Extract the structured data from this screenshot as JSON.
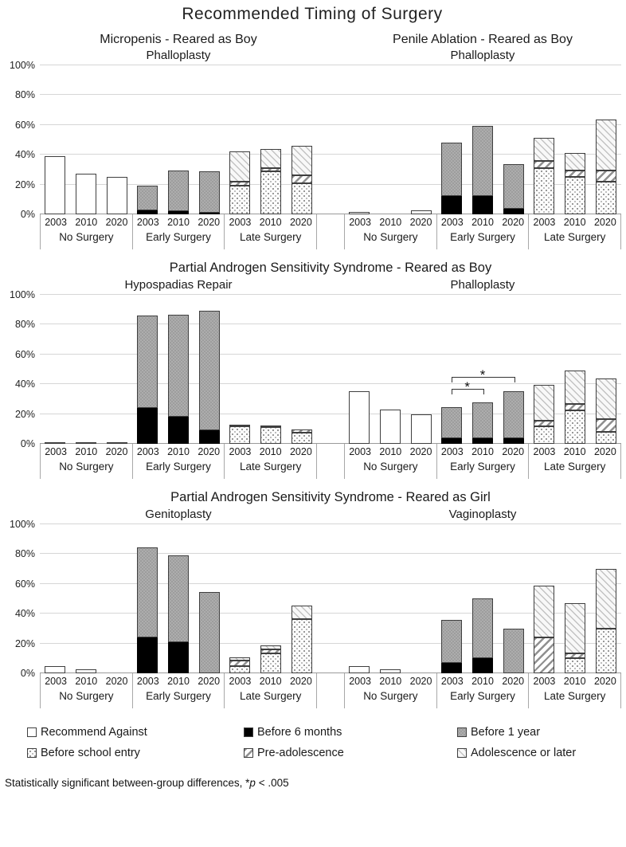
{
  "title": "Recommended Timing of Surgery",
  "y_axis": {
    "ticks": [
      "0%",
      "20%",
      "40%",
      "60%",
      "80%",
      "100%"
    ]
  },
  "legend": {
    "items": [
      {
        "id": "recommend_against",
        "label": "Recommend Against"
      },
      {
        "id": "before_6_months",
        "label": "Before 6 months"
      },
      {
        "id": "before_1_year",
        "label": "Before 1 year"
      },
      {
        "id": "before_school_entry",
        "label": "Before school entry"
      },
      {
        "id": "pre_adolescence",
        "label": "Pre-adolescence"
      },
      {
        "id": "adolescence_or_later",
        "label": "Adolescence or later"
      }
    ]
  },
  "footnote": {
    "prefix": "Statistically significant between-group differences, *",
    "p": "p",
    "suffix": " < .005"
  },
  "chart_data": {
    "type": "bar",
    "stacked": true,
    "unit": "%",
    "ylim": [
      0,
      100
    ],
    "stack_order": [
      "recommend_against",
      "before_6_months",
      "before_1_year",
      "before_school_entry",
      "pre_adolescence",
      "adolescence_or_later"
    ],
    "group_labels": [
      "No Surgery",
      "Early Surgery",
      "Late Surgery"
    ],
    "years": [
      "2003",
      "2010",
      "2020"
    ],
    "rows": [
      {
        "row_title": null,
        "panels": [
          {
            "title": "Micropenis - Reared as Boy",
            "subtitle": "Phalloplasty",
            "groups": [
              {
                "label": "No Surgery",
                "bars": [
                  {
                    "year": "2003",
                    "segments": {
                      "recommend_against": 39
                    }
                  },
                  {
                    "year": "2010",
                    "segments": {
                      "recommend_against": 27
                    }
                  },
                  {
                    "year": "2020",
                    "segments": {
                      "recommend_against": 25
                    }
                  }
                ]
              },
              {
                "label": "Early Surgery",
                "bars": [
                  {
                    "year": "2003",
                    "segments": {
                      "before_6_months": 2.5,
                      "before_1_year": 16.5
                    }
                  },
                  {
                    "year": "2010",
                    "segments": {
                      "before_6_months": 2,
                      "before_1_year": 27.5
                    }
                  },
                  {
                    "year": "2020",
                    "segments": {
                      "before_6_months": 1,
                      "before_1_year": 28
                    }
                  }
                ]
              },
              {
                "label": "Late Surgery",
                "bars": [
                  {
                    "year": "2003",
                    "segments": {
                      "before_school_entry": 19,
                      "pre_adolescence": 3,
                      "adolescence_or_later": 20
                    }
                  },
                  {
                    "year": "2010",
                    "segments": {
                      "before_school_entry": 29,
                      "pre_adolescence": 2,
                      "adolescence_or_later": 12.5
                    }
                  },
                  {
                    "year": "2020",
                    "segments": {
                      "before_school_entry": 21,
                      "pre_adolescence": 5,
                      "adolescence_or_later": 20
                    }
                  }
                ]
              }
            ]
          },
          {
            "title": "Penile Ablation - Reared as Boy",
            "subtitle": "Phalloplasty",
            "groups": [
              {
                "label": "No Surgery",
                "bars": [
                  {
                    "year": "2003",
                    "segments": {
                      "recommend_against": 1.5
                    }
                  },
                  {
                    "year": "2010",
                    "segments": {}
                  },
                  {
                    "year": "2020",
                    "segments": {
                      "recommend_against": 2.5
                    }
                  }
                ]
              },
              {
                "label": "Early Surgery",
                "bars": [
                  {
                    "year": "2003",
                    "segments": {
                      "before_6_months": 12.5,
                      "before_1_year": 35.5
                    }
                  },
                  {
                    "year": "2010",
                    "segments": {
                      "before_6_months": 12.5,
                      "before_1_year": 46.5
                    }
                  },
                  {
                    "year": "2020",
                    "segments": {
                      "before_6_months": 3.5,
                      "before_1_year": 30
                    }
                  }
                ]
              },
              {
                "label": "Late Surgery",
                "bars": [
                  {
                    "year": "2003",
                    "segments": {
                      "before_school_entry": 31,
                      "pre_adolescence": 5,
                      "adolescence_or_later": 15
                    }
                  },
                  {
                    "year": "2010",
                    "segments": {
                      "before_school_entry": 25,
                      "pre_adolescence": 4.5,
                      "adolescence_or_later": 11.5
                    }
                  },
                  {
                    "year": "2020",
                    "segments": {
                      "before_school_entry": 22,
                      "pre_adolescence": 7.5,
                      "adolescence_or_later": 34
                    }
                  }
                ]
              }
            ]
          }
        ]
      },
      {
        "row_title": "Partial Androgen Sensitivity Syndrome - Reared as Boy",
        "panels": [
          {
            "title": null,
            "subtitle": "Hypospadias Repair",
            "groups": [
              {
                "label": "No Surgery",
                "bars": [
                  {
                    "year": "2003",
                    "segments": {
                      "recommend_against": 1
                    }
                  },
                  {
                    "year": "2010",
                    "segments": {
                      "recommend_against": 1
                    }
                  },
                  {
                    "year": "2020",
                    "segments": {
                      "recommend_against": 1
                    }
                  }
                ]
              },
              {
                "label": "Early Surgery",
                "bars": [
                  {
                    "year": "2003",
                    "segments": {
                      "before_6_months": 24,
                      "before_1_year": 62
                    }
                  },
                  {
                    "year": "2010",
                    "segments": {
                      "before_6_months": 18,
                      "before_1_year": 68.5
                    }
                  },
                  {
                    "year": "2020",
                    "segments": {
                      "before_6_months": 9,
                      "before_1_year": 80
                    }
                  }
                ]
              },
              {
                "label": "Late Surgery",
                "bars": [
                  {
                    "year": "2003",
                    "segments": {
                      "before_school_entry": 12,
                      "adolescence_or_later": 1
                    }
                  },
                  {
                    "year": "2010",
                    "segments": {
                      "before_school_entry": 11,
                      "adolescence_or_later": 1
                    }
                  },
                  {
                    "year": "2020",
                    "segments": {
                      "before_school_entry": 7.5,
                      "pre_adolescence": 2
                    }
                  }
                ]
              }
            ]
          },
          {
            "title": null,
            "subtitle": "Phalloplasty",
            "groups": [
              {
                "label": "No Surgery",
                "bars": [
                  {
                    "year": "2003",
                    "segments": {
                      "recommend_against": 35
                    }
                  },
                  {
                    "year": "2010",
                    "segments": {
                      "recommend_against": 23
                    }
                  },
                  {
                    "year": "2020",
                    "segments": {
                      "recommend_against": 20
                    }
                  }
                ]
              },
              {
                "label": "Early Surgery",
                "bars": [
                  {
                    "year": "2003",
                    "segments": {
                      "before_6_months": 4,
                      "before_1_year": 20.5
                    }
                  },
                  {
                    "year": "2010",
                    "segments": {
                      "before_6_months": 4,
                      "before_1_year": 23.5
                    }
                  },
                  {
                    "year": "2020",
                    "segments": {
                      "before_6_months": 4,
                      "before_1_year": 31
                    }
                  }
                ],
                "annotations": [
                  {
                    "type": "bracket",
                    "from_bar": 0,
                    "to_bar": 1,
                    "y_pct": 33,
                    "label": "*"
                  },
                  {
                    "type": "bracket",
                    "from_bar": 0,
                    "to_bar": 2,
                    "y_pct": 41,
                    "label": "*"
                  }
                ]
              },
              {
                "label": "Late Surgery",
                "bars": [
                  {
                    "year": "2003",
                    "segments": {
                      "before_school_entry": 12,
                      "pre_adolescence": 3.5,
                      "adolescence_or_later": 24
                    }
                  },
                  {
                    "year": "2010",
                    "segments": {
                      "before_school_entry": 22.5,
                      "pre_adolescence": 4,
                      "adolescence_or_later": 22.5
                    }
                  },
                  {
                    "year": "2020",
                    "segments": {
                      "before_school_entry": 8,
                      "pre_adolescence": 8.5,
                      "adolescence_or_later": 27.5
                    }
                  }
                ]
              }
            ]
          }
        ]
      },
      {
        "row_title": "Partial Androgen Sensitivity Syndrome - Reared as Girl",
        "panels": [
          {
            "title": null,
            "subtitle": "Genitoplasty",
            "groups": [
              {
                "label": "No Surgery",
                "bars": [
                  {
                    "year": "2003",
                    "segments": {
                      "recommend_against": 5
                    }
                  },
                  {
                    "year": "2010",
                    "segments": {
                      "recommend_against": 2.5
                    }
                  },
                  {
                    "year": "2020",
                    "segments": {}
                  }
                ]
              },
              {
                "label": "Early Surgery",
                "bars": [
                  {
                    "year": "2003",
                    "segments": {
                      "before_6_months": 24,
                      "before_1_year": 60.5
                    }
                  },
                  {
                    "year": "2010",
                    "segments": {
                      "before_6_months": 21,
                      "before_1_year": 58
                    }
                  },
                  {
                    "year": "2020",
                    "segments": {
                      "before_1_year": 54.5
                    }
                  }
                ]
              },
              {
                "label": "Late Surgery",
                "bars": [
                  {
                    "year": "2003",
                    "segments": {
                      "before_school_entry": 5,
                      "pre_adolescence": 3.5,
                      "adolescence_or_later": 2
                    }
                  },
                  {
                    "year": "2010",
                    "segments": {
                      "before_school_entry": 13.5,
                      "pre_adolescence": 2.5,
                      "adolescence_or_later": 2.5
                    }
                  },
                  {
                    "year": "2020",
                    "segments": {
                      "before_school_entry": 36.5,
                      "adolescence_or_later": 9
                    }
                  }
                ]
              }
            ]
          },
          {
            "title": null,
            "subtitle": "Vaginoplasty",
            "groups": [
              {
                "label": "No Surgery",
                "bars": [
                  {
                    "year": "2003",
                    "segments": {
                      "recommend_against": 5
                    }
                  },
                  {
                    "year": "2010",
                    "segments": {
                      "recommend_against": 2.5
                    }
                  },
                  {
                    "year": "2020",
                    "segments": {}
                  }
                ]
              },
              {
                "label": "Early Surgery",
                "bars": [
                  {
                    "year": "2003",
                    "segments": {
                      "before_6_months": 7,
                      "before_1_year": 29
                    }
                  },
                  {
                    "year": "2010",
                    "segments": {
                      "before_6_months": 10,
                      "before_1_year": 40
                    }
                  },
                  {
                    "year": "2020",
                    "segments": {
                      "before_1_year": 30
                    }
                  }
                ]
              },
              {
                "label": "Late Surgery",
                "bars": [
                  {
                    "year": "2003",
                    "segments": {
                      "pre_adolescence": 24,
                      "adolescence_or_later": 34.5
                    }
                  },
                  {
                    "year": "2010",
                    "segments": {
                      "before_school_entry": 10,
                      "pre_adolescence": 3.5,
                      "adolescence_or_later": 33.5
                    }
                  },
                  {
                    "year": "2020",
                    "segments": {
                      "before_school_entry": 30,
                      "adolescence_or_later": 40
                    }
                  }
                ]
              }
            ]
          }
        ]
      }
    ]
  }
}
